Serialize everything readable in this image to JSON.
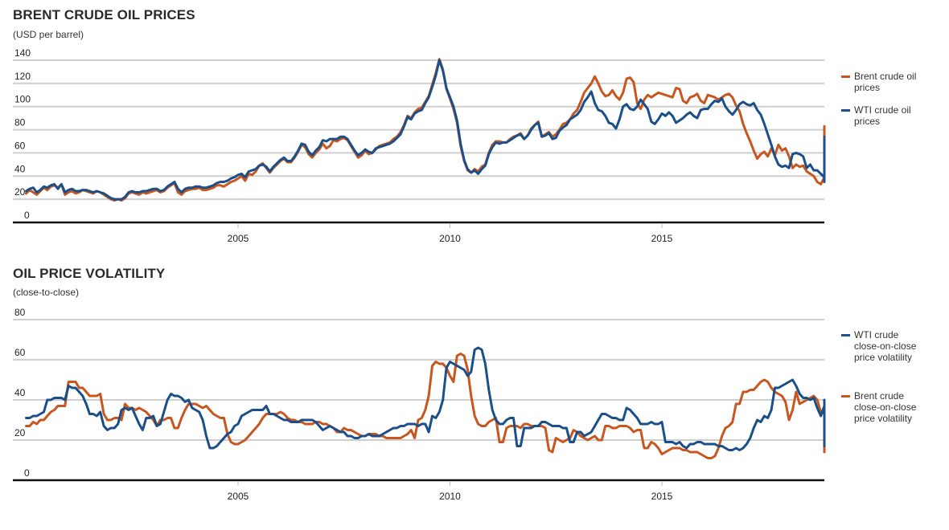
{
  "chart_data": [
    {
      "type": "line",
      "title": "BRENT CRUDE OIL PRICES",
      "subtitle": "(USD per barrel)",
      "xlabel": "",
      "ylabel": "USD per barrel",
      "ylim": [
        0,
        140
      ],
      "xlim": [
        2000.0,
        2018.9
      ],
      "yticks": [
        0,
        20,
        40,
        60,
        80,
        100,
        120,
        140
      ],
      "xticks": [
        2005,
        2010,
        2015
      ],
      "grid": true,
      "legend_position": "right",
      "x_start": 2000.0,
      "x_step_years": 0.0833333,
      "series": [
        {
          "name": "Brent crude oil prices",
          "color": "#c8561f",
          "values": [
            25,
            28,
            26,
            24,
            27,
            30,
            28,
            31,
            32,
            30,
            33,
            24,
            26,
            27,
            25,
            26,
            28,
            27,
            26,
            25,
            27,
            26,
            24,
            22,
            20,
            19,
            20,
            19,
            21,
            25,
            26,
            25,
            24,
            26,
            25,
            26,
            27,
            28,
            26,
            27,
            30,
            32,
            34,
            26,
            24,
            27,
            28,
            29,
            29,
            30,
            28,
            28,
            29,
            30,
            32,
            32,
            31,
            33,
            35,
            36,
            38,
            40,
            36,
            42,
            41,
            44,
            49,
            51,
            47,
            43,
            47,
            50,
            53,
            55,
            52,
            52,
            56,
            61,
            67,
            65,
            59,
            56,
            60,
            63,
            68,
            64,
            66,
            71,
            70,
            72,
            73,
            71,
            66,
            61,
            56,
            58,
            62,
            59,
            60,
            63,
            66,
            67,
            68,
            69,
            72,
            74,
            78,
            84,
            92,
            90,
            95,
            98,
            99,
            104,
            109,
            119,
            129,
            141,
            132,
            115,
            107,
            98,
            86,
            66,
            53,
            45,
            43,
            46,
            44,
            48,
            50,
            60,
            67,
            70,
            70,
            69,
            69,
            72,
            74,
            75,
            77,
            72,
            75,
            81,
            84,
            87,
            74,
            76,
            78,
            74,
            76,
            80,
            85,
            86,
            89,
            94,
            97,
            104,
            112,
            116,
            120,
            126,
            120,
            113,
            109,
            110,
            114,
            109,
            106,
            112,
            124,
            125,
            121,
            103,
            98,
            106,
            110,
            108,
            110,
            112,
            111,
            110,
            109,
            108,
            116,
            115,
            105,
            103,
            108,
            109,
            111,
            105,
            103,
            110,
            109,
            108,
            106,
            108,
            110,
            111,
            108,
            101,
            96,
            85,
            77,
            70,
            62,
            55,
            59,
            61,
            57,
            64,
            58,
            67,
            62,
            64,
            57,
            47,
            50,
            48,
            49,
            44,
            42,
            40,
            35,
            33,
            39,
            41,
            47,
            48,
            49,
            45,
            44,
            47,
            50,
            49,
            49,
            52,
            55,
            56,
            55,
            57,
            60,
            62,
            64,
            66,
            70,
            72,
            74,
            75,
            72,
            77,
            79,
            76,
            78,
            80,
            82,
            77,
            75,
            80,
            83,
            80,
            74,
            63
          ]
        },
        {
          "name": "WTI crude oil prices",
          "color": "#1b4f8a",
          "values": [
            27,
            29,
            30,
            26,
            28,
            31,
            30,
            32,
            33,
            29,
            33,
            26,
            28,
            29,
            27,
            27,
            28,
            28,
            27,
            26,
            27,
            26,
            25,
            23,
            21,
            20,
            20,
            20,
            22,
            26,
            27,
            26,
            26,
            27,
            27,
            28,
            29,
            29,
            27,
            28,
            31,
            33,
            35,
            29,
            26,
            29,
            30,
            30,
            31,
            31,
            30,
            30,
            31,
            32,
            34,
            35,
            35,
            36,
            38,
            39,
            41,
            42,
            39,
            44,
            45,
            46,
            49,
            50,
            48,
            44,
            48,
            51,
            54,
            56,
            53,
            53,
            57,
            62,
            68,
            67,
            61,
            58,
            62,
            65,
            71,
            70,
            72,
            72,
            72,
            74,
            74,
            72,
            67,
            62,
            58,
            60,
            63,
            61,
            60,
            64,
            65,
            66,
            67,
            68,
            70,
            73,
            76,
            83,
            91,
            89,
            94,
            96,
            97,
            103,
            108,
            117,
            127,
            140,
            131,
            116,
            108,
            100,
            88,
            68,
            54,
            46,
            43,
            45,
            42,
            46,
            49,
            59,
            65,
            69,
            68,
            69,
            69,
            71,
            73,
            75,
            76,
            72,
            75,
            80,
            84,
            86,
            74,
            75,
            77,
            72,
            73,
            79,
            82,
            84,
            89,
            91,
            93,
            97,
            104,
            108,
            113,
            103,
            97,
            96,
            92,
            86,
            85,
            81,
            89,
            100,
            102,
            98,
            97,
            100,
            106,
            102,
            98,
            87,
            85,
            89,
            94,
            92,
            95,
            92,
            86,
            88,
            90,
            93,
            95,
            92,
            90,
            97,
            98,
            98,
            102,
            105,
            104,
            107,
            100,
            96,
            93,
            97,
            102,
            104,
            102,
            101,
            103,
            97,
            93,
            85,
            76,
            67,
            57,
            50,
            48,
            49,
            47,
            59,
            60,
            59,
            57,
            47,
            50,
            45,
            45,
            42,
            39,
            36,
            35,
            37,
            44,
            47,
            48,
            47,
            41,
            44,
            46,
            48,
            47,
            49,
            50,
            52,
            52,
            51,
            51,
            49,
            48,
            48,
            50,
            52,
            51,
            48,
            47,
            50,
            53,
            56,
            57,
            61,
            62,
            66,
            70,
            64,
            67,
            66,
            70,
            73,
            74,
            70,
            68,
            72,
            70,
            74,
            67,
            62,
            54
          ]
        }
      ]
    },
    {
      "type": "line",
      "title": "OIL PRICE VOLATILITY",
      "subtitle": "(close-to-close)",
      "xlabel": "",
      "ylabel": "close-to-close volatility",
      "ylim": [
        0,
        80
      ],
      "xlim": [
        2000.0,
        2018.9
      ],
      "yticks": [
        0,
        20,
        40,
        60,
        80
      ],
      "xticks": [
        2005,
        2010,
        2015
      ],
      "grid": true,
      "legend_position": "right",
      "x_start": 2000.0,
      "x_step_years": 0.0833333,
      "series": [
        {
          "name": "WTI crude close-on-close price volatility",
          "color": "#1b4f8a",
          "values": [
            31,
            31,
            32,
            32,
            33,
            34,
            40,
            40,
            41,
            41,
            41,
            40,
            47,
            46,
            46,
            44,
            42,
            38,
            33,
            33,
            32,
            34,
            27,
            25,
            26,
            26,
            28,
            35,
            36,
            35,
            36,
            32,
            28,
            25,
            31,
            31,
            32,
            27,
            28,
            34,
            40,
            43,
            42,
            42,
            41,
            39,
            40,
            36,
            35,
            34,
            30,
            22,
            16,
            16,
            17,
            19,
            21,
            23,
            24,
            27,
            28,
            32,
            33,
            34,
            35,
            35,
            35,
            35,
            37,
            33,
            33,
            32,
            31,
            30,
            30,
            29,
            29,
            29,
            30,
            30,
            30,
            30,
            29,
            27,
            25,
            26,
            27,
            26,
            25,
            24,
            24,
            22,
            22,
            21,
            21,
            22,
            22,
            23,
            22,
            22,
            22,
            23,
            24,
            25,
            26,
            26,
            27,
            27,
            28,
            28,
            28,
            27,
            28,
            28,
            24,
            32,
            31,
            34,
            40,
            56,
            59,
            58,
            57,
            56,
            55,
            52,
            54,
            65,
            66,
            65,
            58,
            45,
            35,
            30,
            28,
            28,
            30,
            31,
            31,
            17,
            17,
            26,
            26,
            26,
            27,
            27,
            29,
            29,
            28,
            27,
            27,
            27,
            26,
            26,
            19,
            19,
            24,
            24,
            22,
            23,
            24,
            27,
            30,
            33,
            33,
            32,
            31,
            31,
            30,
            30,
            36,
            35,
            33,
            31,
            28,
            28,
            28,
            29,
            28,
            28,
            29,
            19,
            19,
            19,
            18,
            19,
            17,
            16,
            18,
            18,
            19,
            19,
            18,
            18,
            18,
            18,
            17,
            17,
            16,
            15,
            15,
            16,
            15,
            16,
            18,
            21,
            26,
            30,
            29,
            32,
            31,
            35,
            46,
            46,
            47,
            48,
            49,
            50,
            47,
            43,
            41,
            41,
            40,
            41,
            36,
            32,
            37,
            40,
            37,
            37,
            38,
            39,
            40,
            39,
            37,
            33,
            31,
            31,
            30,
            27,
            25,
            19,
            18,
            19,
            19,
            20,
            21,
            20,
            20,
            21,
            20,
            20,
            21,
            20,
            19,
            18,
            20,
            20,
            19,
            17,
            20,
            20,
            20,
            20,
            27,
            32
          ]
        },
        {
          "name": "Brent crude close-on-close price volatility",
          "color": "#c8561f",
          "values": [
            27,
            27,
            29,
            28,
            30,
            30,
            32,
            34,
            35,
            37,
            37,
            37,
            49,
            49,
            49,
            46,
            46,
            44,
            42,
            42,
            42,
            43,
            33,
            30,
            30,
            31,
            31,
            30,
            38,
            36,
            36,
            35,
            36,
            35,
            34,
            32,
            30,
            27,
            30,
            30,
            31,
            31,
            26,
            26,
            31,
            35,
            38,
            38,
            38,
            37,
            36,
            37,
            35,
            33,
            32,
            31,
            31,
            23,
            19,
            18,
            18,
            19,
            20,
            22,
            24,
            26,
            28,
            31,
            33,
            33,
            33,
            33,
            34,
            33,
            31,
            30,
            30,
            29,
            29,
            28,
            28,
            28,
            29,
            29,
            28,
            28,
            27,
            26,
            24,
            24,
            26,
            25,
            25,
            24,
            23,
            22,
            22,
            23,
            23,
            23,
            22,
            22,
            21,
            21,
            21,
            21,
            21,
            22,
            23,
            25,
            21,
            30,
            31,
            35,
            42,
            57,
            59,
            58,
            58,
            56,
            52,
            49,
            62,
            63,
            62,
            55,
            42,
            32,
            28,
            27,
            27,
            29,
            30,
            31,
            19,
            19,
            26,
            27,
            27,
            27,
            26,
            28,
            28,
            27,
            27,
            27,
            27,
            26,
            15,
            14,
            21,
            20,
            19,
            20,
            21,
            25,
            24,
            22,
            21,
            20,
            21,
            22,
            20,
            20,
            27,
            27,
            26,
            26,
            27,
            27,
            27,
            26,
            24,
            25,
            25,
            16,
            16,
            19,
            18,
            16,
            13,
            14,
            15,
            16,
            16,
            16,
            15,
            15,
            14,
            14,
            14,
            13,
            12,
            11,
            11,
            12,
            16,
            22,
            26,
            27,
            29,
            38,
            38,
            44,
            44,
            45,
            45,
            47,
            49,
            50,
            49,
            46,
            44,
            43,
            42,
            39,
            30,
            35,
            44,
            38,
            39,
            40,
            41,
            42,
            40,
            34,
            33,
            31,
            31,
            27,
            26,
            19,
            17,
            18,
            18,
            19,
            20,
            21,
            20,
            20,
            21,
            20,
            20,
            19,
            19,
            18,
            19,
            18,
            17,
            15,
            14,
            16,
            17,
            16,
            17,
            17,
            20,
            30
          ]
        }
      ]
    }
  ],
  "charts": {
    "prices": {
      "title": "BRENT CRUDE OIL PRICES",
      "subtitle": "(USD per barrel)",
      "legend": [
        {
          "label": "Brent crude oil prices",
          "color": "#c8561f"
        },
        {
          "label": "WTI crude oil prices",
          "color": "#1b4f8a"
        }
      ]
    },
    "volatility": {
      "title": "OIL PRICE VOLATILITY",
      "subtitle": "(close-to-close)",
      "legend": [
        {
          "label": "WTI crude close-on-close price volatility",
          "color": "#1b4f8a"
        },
        {
          "label": "Brent crude close-on-close price volatility",
          "color": "#c8561f"
        }
      ]
    }
  }
}
